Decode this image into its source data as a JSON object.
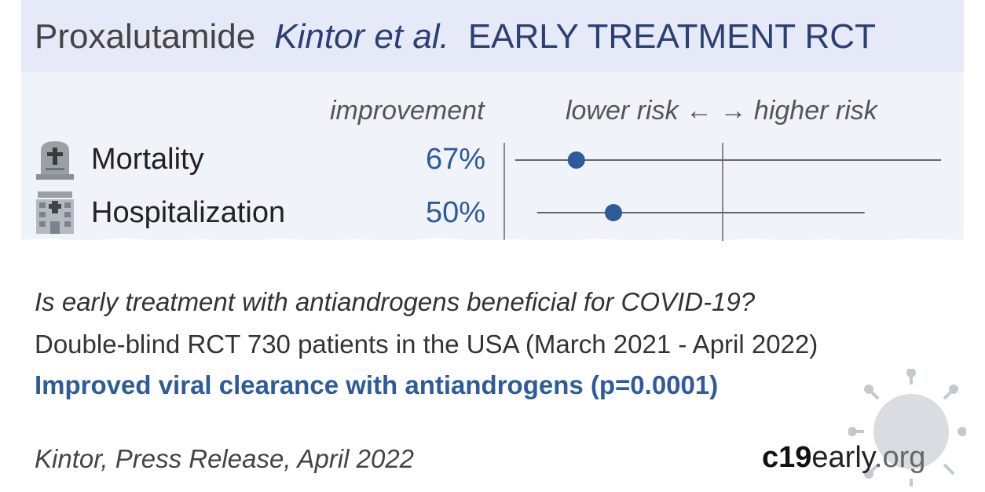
{
  "header": {
    "drug": "Proxalutamide",
    "authors": "Kintor et al.",
    "study_type": "EARLY TREATMENT RCT"
  },
  "columns": {
    "improvement": "improvement",
    "risk_axis": "lower risk ← → higher risk"
  },
  "chart_data": {
    "type": "scatter",
    "subtype": "forest-plot",
    "outcomes": [
      {
        "label": "Mortality",
        "improvement_text": "67%",
        "relative_risk": 0.33,
        "ci_low": 0.05,
        "ci_high": 2.0,
        "icon": "tombstone-icon"
      },
      {
        "label": "Hospitalization",
        "improvement_text": "50%",
        "relative_risk": 0.5,
        "ci_low": 0.15,
        "ci_high": 1.65,
        "icon": "hospital-icon"
      }
    ],
    "reference_line": 1.0,
    "xlim": [
      0,
      2
    ],
    "colors": {
      "point": "#2e5b99",
      "line": "#666666"
    }
  },
  "summary": {
    "question": "Is early treatment with antiandrogens beneficial for COVID-19?",
    "design": "Double-blind RCT 730 patients in the USA (March 2021 - April 2022)",
    "result": "Improved viral clearance with antiandrogens (p=0.0001)"
  },
  "source": "Kintor, Press Release, April 2022",
  "brand": {
    "part1": "c19",
    "part2": "early",
    "part3": ".org"
  },
  "colors": {
    "header_bg": "#e6e9f7",
    "panel_bg": "#f1f3fb",
    "accent": "#2e5b99",
    "title_blue": "#2b3f73"
  }
}
